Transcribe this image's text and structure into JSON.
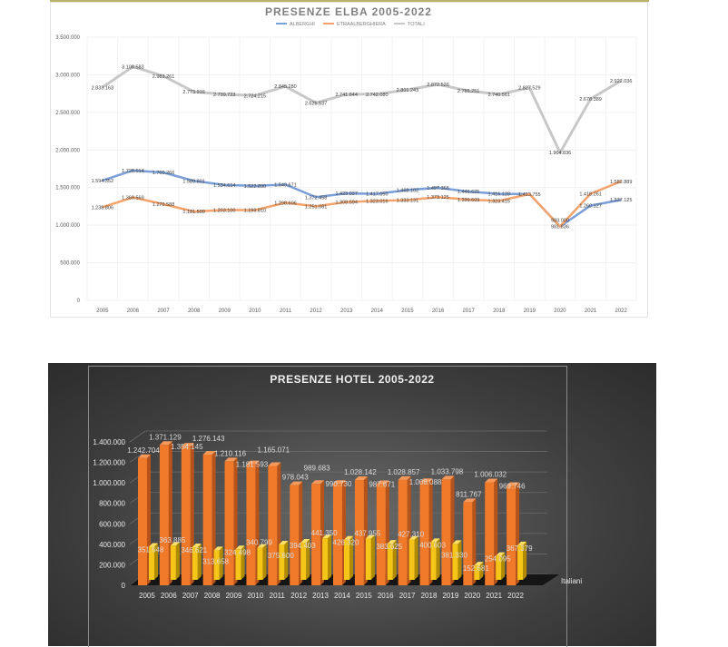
{
  "chart_data": [
    {
      "type": "line",
      "title": "PRESENZE ELBA 2005-2022",
      "legend_position": "top-right",
      "ylim": [
        0,
        3500000
      ],
      "y_ticks": [
        "0",
        "500.000",
        "1.000.000",
        "1.500.000",
        "2.000.000",
        "2.500.000",
        "3.000.000",
        "3.500.000"
      ],
      "categories": [
        "2005",
        "2006",
        "2007",
        "2008",
        "2009",
        "2010",
        "2011",
        "2012",
        "2013",
        "2014",
        "2015",
        "2016",
        "2017",
        "2018",
        "2019",
        "2020",
        "2021",
        "2022"
      ],
      "series": [
        {
          "name": "ALBERGHI",
          "color": "#7b9fd8",
          "values": [
            1594352,
            1728014,
            1700266,
            1589801,
            1534614,
            1522890,
            1540671,
            1372458,
            1423037,
            1417050,
            1468102,
            1497365,
            1446625,
            1416128,
            1413755,
            981836,
            1260127,
            1337125
          ],
          "labels": [
            "1.594.352",
            "1.728.014",
            "1.700.266",
            "1.589.801",
            "1.534.614",
            "1.522.890",
            "1.540.671",
            "1.372.458",
            "1.423.037",
            "1.417.050",
            "1.468.102",
            "1.497.365",
            "1.446.625",
            "1.416.128",
            "1.413.755",
            "981.836",
            "1.260.127",
            "1.337.125"
          ]
        },
        {
          "name": "ETRAALBERGHIERA",
          "color": "#f4a36c",
          "values": [
            1238806,
            1369569,
            1279588,
            1181509,
            1203100,
            1199810,
            1298606,
            1251081,
            1308594,
            1323016,
            1333131,
            1373125,
            1339609,
            1323415,
            1413774,
            983000,
            1418261,
            1582889
          ],
          "labels": [
            "1.238.806",
            "1.369.569",
            "1.279.588",
            "1.181.509",
            "1.203.100",
            "1.199.810",
            "1.298.606",
            "1.251.081",
            "1.308.594",
            "1.323.016",
            "1.333.131",
            "1.373.125",
            "1.339.609",
            "1.323.415",
            "",
            "983.000",
            "1.418.261",
            "1.582.889"
          ]
        },
        {
          "name": "TOTALI",
          "color": "#c8c8c8",
          "values": [
            2833163,
            3108583,
            2983261,
            2773916,
            2739723,
            2724215,
            2845280,
            2625537,
            2741644,
            2742080,
            2801243,
            2872526,
            2786251,
            2740561,
            2827529,
            1964836,
            2678389,
            2922036
          ],
          "labels": [
            "2.833.163",
            "3.108.583",
            "2.983.261",
            "2.773.916",
            "2.739.723",
            "2.724.215",
            "2.845.280",
            "2.625.537",
            "2.741.644",
            "2.742.080",
            "2.801.243",
            "2.872.526",
            "2.786.251",
            "2.740.561",
            "2.827.529",
            "1.964.836",
            "2.678.389",
            "2.922.036"
          ]
        }
      ]
    },
    {
      "type": "bar",
      "title": "PRESENZE HOTEL 2005-2022",
      "ylim": [
        0,
        1400000
      ],
      "y_ticks": [
        "0",
        "200.000",
        "400.000",
        "600.000",
        "800.000",
        "1.000.000",
        "1.200.000",
        "1.400.000"
      ],
      "categories": [
        "2005",
        "2006",
        "2007",
        "2008",
        "2009",
        "2010",
        "2011",
        "2012",
        "2013",
        "2014",
        "2015",
        "2016",
        "2017",
        "2018",
        "2019",
        "2020",
        "2021",
        "2022"
      ],
      "depth_axis_label": "Italiani",
      "series": [
        {
          "name": "",
          "color": "#f07a2a",
          "values": [
            1242704,
            1371129,
            1354145,
            1276143,
            1210116,
            1181593,
            1165071,
            978043,
            989683,
            990730,
            1028142,
            987671,
            1028857,
            1008088,
            1033798,
            811767,
            1006032,
            969746
          ],
          "labels": [
            "1.242.704",
            "1.371.129",
            "1.354.145",
            "1.276.143",
            "1.210.116",
            "1.181.593",
            "1.165.071",
            "978.043",
            "989.683",
            "990.730",
            "1.028.142",
            "987.671",
            "1.028.857",
            "1.008.088",
            "1.033.798",
            "811.767",
            "1.006.032",
            "969.746"
          ]
        },
        {
          "name": "Italiani",
          "color": "#f5c518",
          "values": [
            351648,
            363885,
            346621,
            313658,
            324498,
            340799,
            375600,
            394403,
            441350,
            426320,
            437955,
            383625,
            427310,
            400603,
            381330,
            152681,
            254095,
            367379
          ],
          "labels": [
            "351.648",
            "363.885",
            "346.621",
            "313.658",
            "324.498",
            "340.799",
            "375.600",
            "394.403",
            "441.350",
            "426.320",
            "437.955",
            "383.625",
            "427.310",
            "400.603",
            "381.330",
            "152.681",
            "254.095",
            "367.379"
          ]
        }
      ]
    }
  ]
}
